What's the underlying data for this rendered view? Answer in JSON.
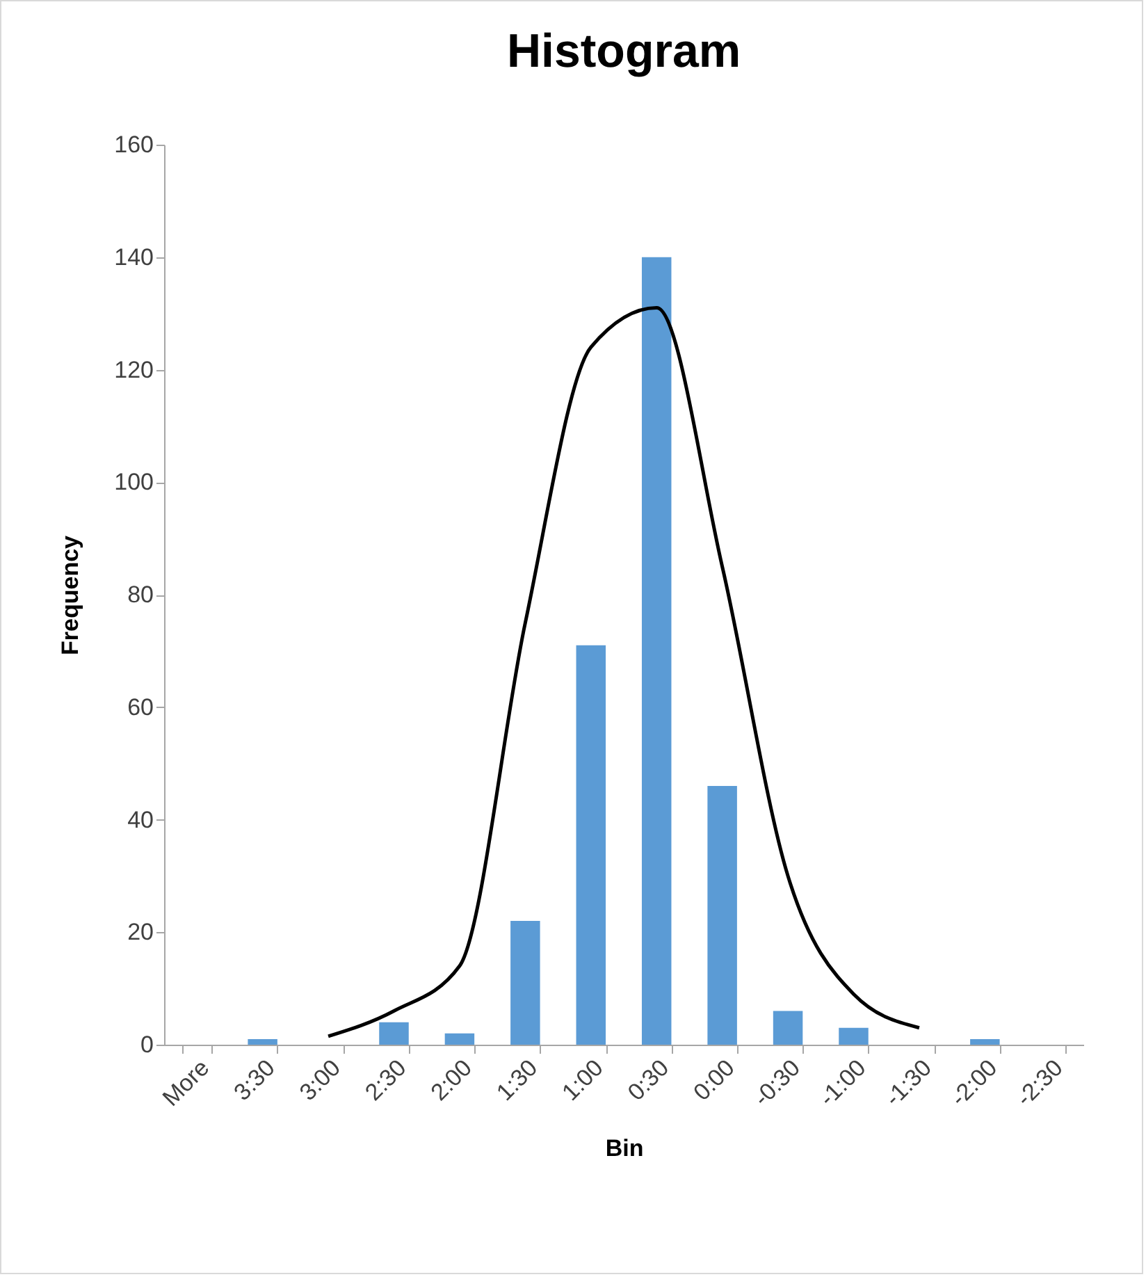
{
  "chart_data": {
    "type": "bar",
    "title": "Histogram",
    "xlabel": "Bin",
    "ylabel": "Frequency",
    "categories": [
      "More",
      "3:30",
      "3:00",
      "2:30",
      "2:00",
      "1:30",
      "1:00",
      "0:30",
      "0:00",
      "-0:30",
      "-1:00",
      "-1:30",
      "-2:00",
      "-2:30"
    ],
    "series": [
      {
        "color": "#5b9bd5",
        "values": [
          0,
          1,
          0,
          4,
          2,
          22,
          71,
          140,
          46,
          6,
          3,
          0,
          1,
          0
        ]
      },
      {
        "type": "line",
        "color": "#000000",
        "values": [
          null,
          null,
          1.5,
          6,
          14,
          75,
          124,
          131,
          85,
          30,
          9,
          3,
          null,
          null
        ]
      }
    ],
    "ylim": [
      0,
      160
    ],
    "yticks": [
      0,
      20,
      40,
      60,
      80,
      100,
      120,
      140,
      160
    ],
    "grid": false
  }
}
